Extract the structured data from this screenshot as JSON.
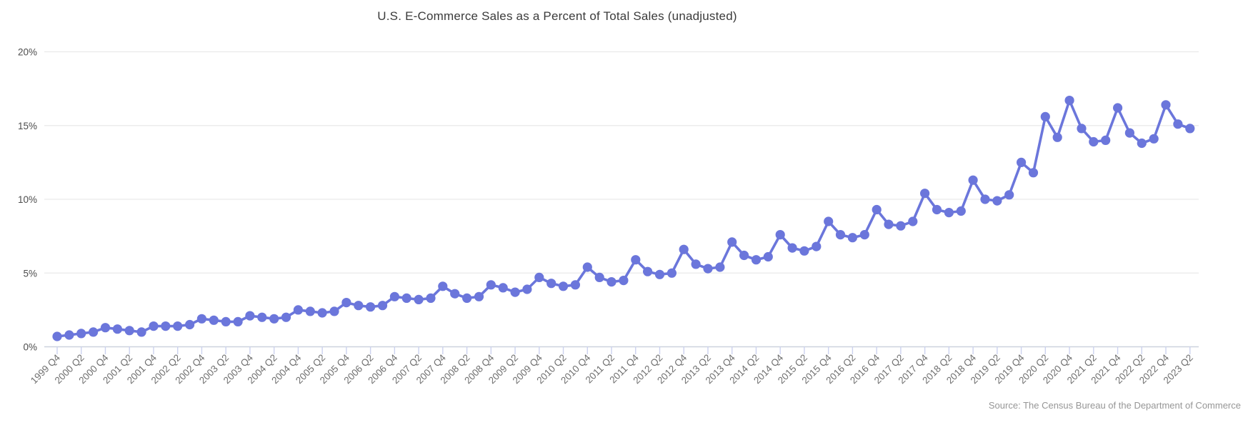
{
  "title": "U.S. E-Commerce Sales as a Percent of Total Sales (unadjusted)",
  "source_note": "Source: The Census Bureau of the Department of Commerce",
  "colors": {
    "line": "#6b76db",
    "point": "#6b76db",
    "gridline": "#e9e9e9",
    "axis_line": "#ccd2de",
    "tick": "#ccd2ef",
    "y_label": "#4d4d4d",
    "x_label": "#6f6f6f",
    "title": "#3b3b3b",
    "source": "#969696",
    "background": "#ffffff"
  },
  "chart_data": {
    "type": "line",
    "title": "U.S. E-Commerce Sales as a Percent of Total Sales (unadjusted)",
    "xlabel": "",
    "ylabel": "",
    "ylim": [
      0,
      20
    ],
    "yticks": [
      0,
      5,
      10,
      15,
      20
    ],
    "ytick_suffix": "%",
    "grid": true,
    "legend": "none",
    "x_label_every": 2,
    "x_label_rotation": -45,
    "categories": [
      "1999 Q4",
      "2000 Q1",
      "2000 Q2",
      "2000 Q3",
      "2000 Q4",
      "2001 Q1",
      "2001 Q2",
      "2001 Q3",
      "2001 Q4",
      "2002 Q1",
      "2002 Q2",
      "2002 Q3",
      "2002 Q4",
      "2003 Q1",
      "2003 Q2",
      "2003 Q3",
      "2003 Q4",
      "2004 Q1",
      "2004 Q2",
      "2004 Q3",
      "2004 Q4",
      "2005 Q1",
      "2005 Q2",
      "2005 Q3",
      "2005 Q4",
      "2006 Q1",
      "2006 Q2",
      "2006 Q3",
      "2006 Q4",
      "2007 Q1",
      "2007 Q2",
      "2007 Q3",
      "2007 Q4",
      "2008 Q1",
      "2008 Q2",
      "2008 Q3",
      "2008 Q4",
      "2009 Q1",
      "2009 Q2",
      "2009 Q3",
      "2009 Q4",
      "2010 Q1",
      "2010 Q2",
      "2010 Q3",
      "2010 Q4",
      "2011 Q1",
      "2011 Q2",
      "2011 Q3",
      "2011 Q4",
      "2012 Q1",
      "2012 Q2",
      "2012 Q3",
      "2012 Q4",
      "2013 Q1",
      "2013 Q2",
      "2013 Q3",
      "2013 Q4",
      "2014 Q1",
      "2014 Q2",
      "2014 Q3",
      "2014 Q4",
      "2015 Q1",
      "2015 Q2",
      "2015 Q3",
      "2015 Q4",
      "2016 Q1",
      "2016 Q2",
      "2016 Q3",
      "2016 Q4",
      "2017 Q1",
      "2017 Q2",
      "2017 Q3",
      "2017 Q4",
      "2018 Q1",
      "2018 Q2",
      "2018 Q3",
      "2018 Q4",
      "2019 Q1",
      "2019 Q2",
      "2019 Q3",
      "2019 Q4",
      "2020 Q1",
      "2020 Q2",
      "2020 Q3",
      "2020 Q4",
      "2021 Q1",
      "2021 Q2",
      "2021 Q3",
      "2021 Q4",
      "2022 Q1",
      "2022 Q2",
      "2022 Q3",
      "2022 Q4",
      "2023 Q1",
      "2023 Q2"
    ],
    "values": [
      0.7,
      0.8,
      0.9,
      1.0,
      1.3,
      1.2,
      1.1,
      1.0,
      1.4,
      1.4,
      1.4,
      1.5,
      1.9,
      1.8,
      1.7,
      1.7,
      2.1,
      2.0,
      1.9,
      2.0,
      2.5,
      2.4,
      2.3,
      2.4,
      3.0,
      2.8,
      2.7,
      2.8,
      3.4,
      3.3,
      3.2,
      3.3,
      4.1,
      3.6,
      3.3,
      3.4,
      4.2,
      4.0,
      3.7,
      3.9,
      4.7,
      4.3,
      4.1,
      4.2,
      5.4,
      4.7,
      4.4,
      4.5,
      5.9,
      5.1,
      4.9,
      5.0,
      6.6,
      5.6,
      5.3,
      5.4,
      7.1,
      6.2,
      5.9,
      6.1,
      7.6,
      6.7,
      6.5,
      6.8,
      8.5,
      7.6,
      7.4,
      7.6,
      9.3,
      8.3,
      8.2,
      8.5,
      10.4,
      9.3,
      9.1,
      9.2,
      11.3,
      10.0,
      9.9,
      10.3,
      12.5,
      11.8,
      15.6,
      14.2,
      16.7,
      14.8,
      13.9,
      14.0,
      16.2,
      14.5,
      13.8,
      14.1,
      16.4,
      15.1,
      14.8
    ]
  }
}
